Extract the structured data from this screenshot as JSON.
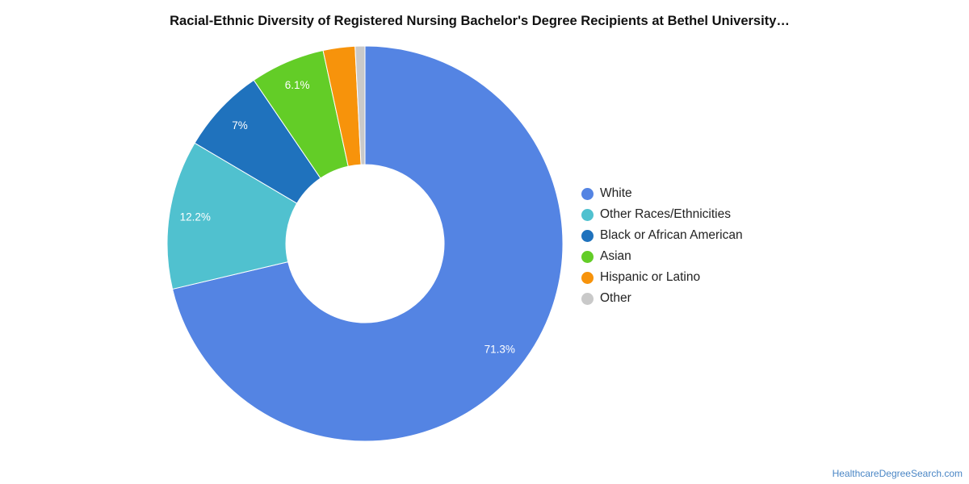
{
  "chart_data": {
    "type": "pie",
    "title": "Racial-Ethnic Diversity of Registered Nursing Bachelor's Degree Recipients at Bethel University…",
    "donut": true,
    "legend_position": "right",
    "slices": [
      {
        "name": "White",
        "value": 71.3,
        "label": "71.3%",
        "color": "#5484e3"
      },
      {
        "name": "Other Races/Ethnicities",
        "value": 12.2,
        "label": "12.2%",
        "color": "#50c1cf"
      },
      {
        "name": "Black or African American",
        "value": 7.0,
        "label": "7%",
        "color": "#1f72bd"
      },
      {
        "name": "Asian",
        "value": 6.1,
        "label": "6.1%",
        "color": "#63cd27"
      },
      {
        "name": "Hispanic or Latino",
        "value": 2.6,
        "label": "",
        "color": "#f7930b"
      },
      {
        "name": "Other",
        "value": 0.8,
        "label": "",
        "color": "#c9c9c9"
      }
    ]
  },
  "source_link": "HealthcareDegreeSearch.com"
}
